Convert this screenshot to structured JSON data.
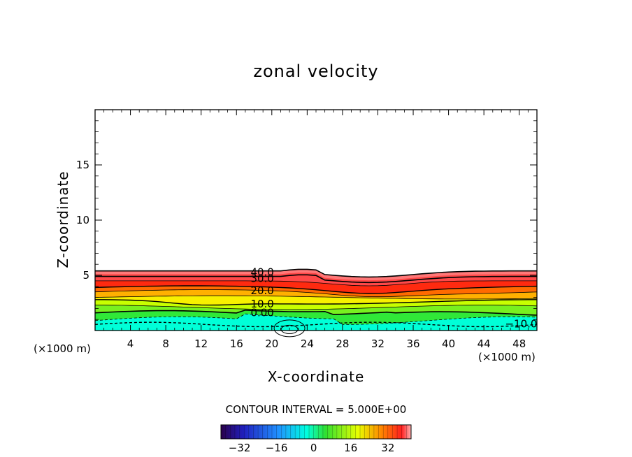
{
  "chart_data": {
    "type": "heatmap",
    "title": "zonal velocity",
    "xlabel": "X-coordinate",
    "ylabel": "Z-coordinate",
    "x_unit_label": "(×1000 m)",
    "xlim": [
      0,
      50
    ],
    "ylim": [
      0,
      20
    ],
    "x_ticks": [
      "4",
      "8",
      "12",
      "16",
      "20",
      "24",
      "28",
      "32",
      "36",
      "40",
      "44",
      "48"
    ],
    "x_tick_values": [
      4,
      8,
      12,
      16,
      20,
      24,
      28,
      32,
      36,
      40,
      44,
      48
    ],
    "y_ticks": [
      "5",
      "10",
      "15"
    ],
    "y_tick_values": [
      5,
      10,
      15
    ],
    "contour_interval_text": "CONTOUR INTERVAL = 5.000E+00",
    "contour_labels": [
      {
        "text": "40.0",
        "x": 17.6,
        "z": 5.3
      },
      {
        "text": "30.0",
        "x": 17.6,
        "z": 4.7
      },
      {
        "text": "20.0",
        "x": 17.6,
        "z": 3.6
      },
      {
        "text": "10.0",
        "x": 17.6,
        "z": 2.4
      },
      {
        "text": "0.00",
        "x": 17.6,
        "z": 1.6
      },
      {
        "text": "−10.0",
        "x": 46.4,
        "z": 0.6
      }
    ],
    "colorbar": {
      "ticks": [
        "−32",
        "−16",
        "0",
        "16",
        "32"
      ],
      "tick_values": [
        -32,
        -16,
        0,
        16,
        32
      ],
      "range": [
        -40,
        42
      ]
    },
    "colors": {
      "cyan": "#00ffe0",
      "green": "#3fdc3f",
      "yellow": "#e8ff00",
      "orange": "#ff9a00",
      "red": "#ff2020",
      "top": "#ff6e6e"
    }
  }
}
